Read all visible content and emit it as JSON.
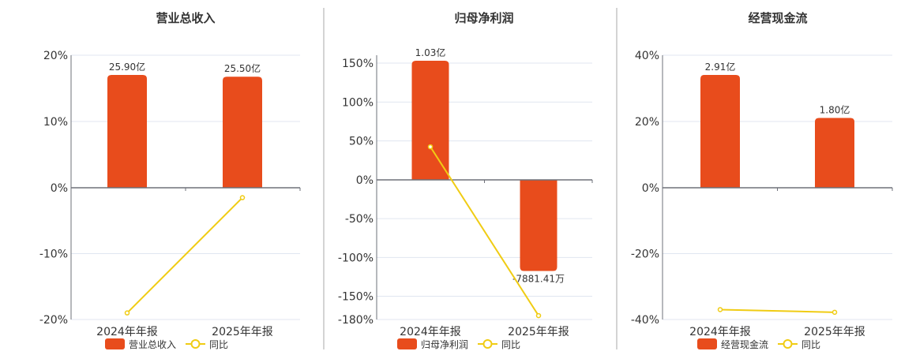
{
  "colors": {
    "bar": "#e84c1c",
    "line": "#f0cc14",
    "grid": "#e0e6f0",
    "axis": "#6e7079",
    "divider": "#aaaaaa"
  },
  "chart_data": [
    {
      "type": "bar+line",
      "title": "营业总收入",
      "categories": [
        "2024年年报",
        "2025年年报"
      ],
      "bar_series": {
        "name": "营业总收入",
        "values": [
          25.9,
          25.5
        ],
        "unit": "亿",
        "labels": [
          "25.90亿",
          "25.50亿"
        ]
      },
      "line_series": {
        "name": "同比",
        "values": [
          -19.0,
          -1.5
        ],
        "unit": "%"
      },
      "ylim": [
        -20,
        20
      ],
      "yticks": [
        "20%",
        "10%",
        "0%",
        "-10%",
        "-20%"
      ],
      "ytick_values": [
        20,
        10,
        0,
        -10,
        -20
      ],
      "grid": true,
      "legend": "bottom"
    },
    {
      "type": "bar+line",
      "title": "归母净利润",
      "categories": [
        "2024年年报",
        "2025年年报"
      ],
      "bar_series": {
        "name": "归母净利润",
        "values": [
          1.03,
          -0.788141
        ],
        "unit": "亿",
        "labels": [
          "1.03亿",
          "-7881.41万"
        ]
      },
      "line_series": {
        "name": "同比",
        "values": [
          42.5,
          -175
        ],
        "unit": "%"
      },
      "ylim": [
        -180,
        160
      ],
      "yticks": [
        "150%",
        "100%",
        "50%",
        "0%",
        "-50%",
        "-100%",
        "-150%",
        "-180%"
      ],
      "ytick_values": [
        150,
        100,
        50,
        0,
        -50,
        -100,
        -150,
        -180
      ],
      "grid": true,
      "legend": "bottom"
    },
    {
      "type": "bar+line",
      "title": "经营现金流",
      "categories": [
        "2024年年报",
        "2025年年报"
      ],
      "bar_series": {
        "name": "经营现金流",
        "values": [
          2.91,
          1.8
        ],
        "unit": "亿",
        "labels": [
          "2.91亿",
          "1.80亿"
        ]
      },
      "line_series": {
        "name": "同比",
        "values": [
          -37.0,
          -37.8
        ],
        "unit": "%"
      },
      "ylim": [
        -40,
        40
      ],
      "yticks": [
        "40%",
        "20%",
        "0%",
        "-20%",
        "-40%"
      ],
      "ytick_values": [
        40,
        20,
        0,
        -20,
        -40
      ],
      "grid": true,
      "legend": "bottom"
    }
  ]
}
